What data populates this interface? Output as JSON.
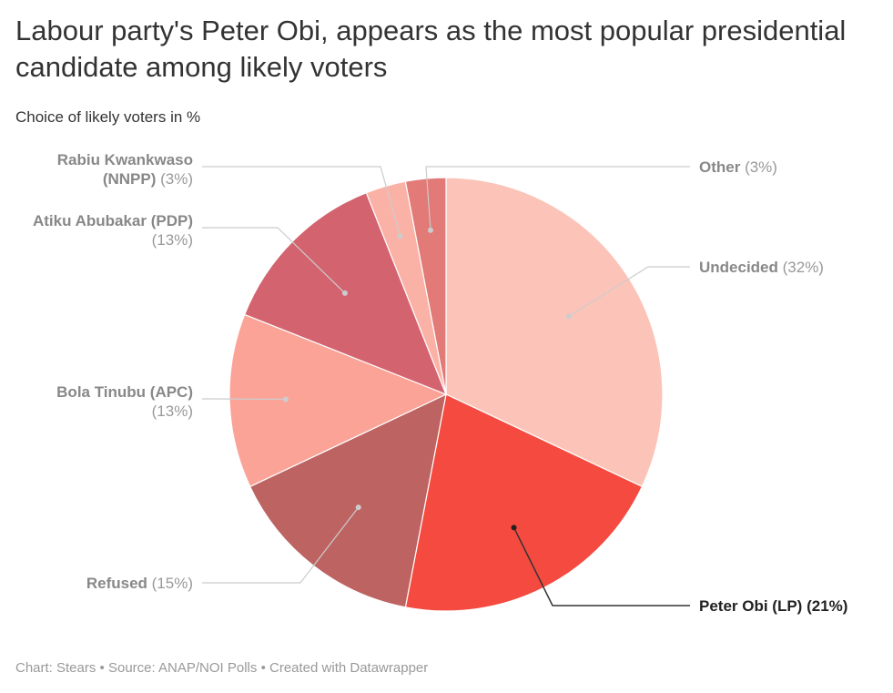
{
  "title": "Labour party's Peter Obi, appears as the most popular presidential candidate among likely voters",
  "subtitle": "Choice of likely voters in %",
  "footer": {
    "credit": "Chart: Stears",
    "source": "Source: ANAP/NOI Polls",
    "tool": "Created with Datawrapper",
    "separator": "•"
  },
  "chart_data": {
    "type": "pie",
    "unit": "%",
    "slices": [
      {
        "name": "Undecided",
        "value": 32,
        "value_label": "(32%)",
        "color": "#fcc4b8",
        "label_lines": [
          "Undecided (32%)"
        ],
        "label_side": "right",
        "highlight": false
      },
      {
        "name": "Peter Obi (LP)",
        "value": 21,
        "value_label": "(21%)",
        "color": "#f44a40",
        "label_lines": [
          "Peter Obi (LP) (21%)"
        ],
        "label_side": "right",
        "highlight": true
      },
      {
        "name": "Refused",
        "value": 15,
        "value_label": "(15%)",
        "color": "#bd6462",
        "label_lines": [
          "Refused (15%)"
        ],
        "label_side": "left",
        "highlight": false
      },
      {
        "name": "Bola Tinubu (APC)",
        "value": 13,
        "value_label": "(13%)",
        "color": "#fba397",
        "label_lines": [
          "Bola Tinubu (APC)",
          "(13%)"
        ],
        "label_side": "left",
        "highlight": false
      },
      {
        "name": "Atiku Abubakar (PDP)",
        "value": 13,
        "value_label": "(13%)",
        "color": "#d3646f",
        "label_lines": [
          "Atiku Abubakar (PDP)",
          "(13%)"
        ],
        "label_side": "left",
        "highlight": false
      },
      {
        "name": "Rabiu Kwankwaso (NNPP)",
        "value": 3,
        "value_label": "(3%)",
        "color": "#fbb2a6",
        "label_lines": [
          "Rabiu Kwankwaso",
          "(NNPP) (3%)"
        ],
        "label_side": "left",
        "highlight": false
      },
      {
        "name": "Other",
        "value": 3,
        "value_label": "(3%)",
        "color": "#e27a77",
        "label_lines": [
          "Other (3%)"
        ],
        "label_side": "right",
        "highlight": false
      }
    ]
  }
}
